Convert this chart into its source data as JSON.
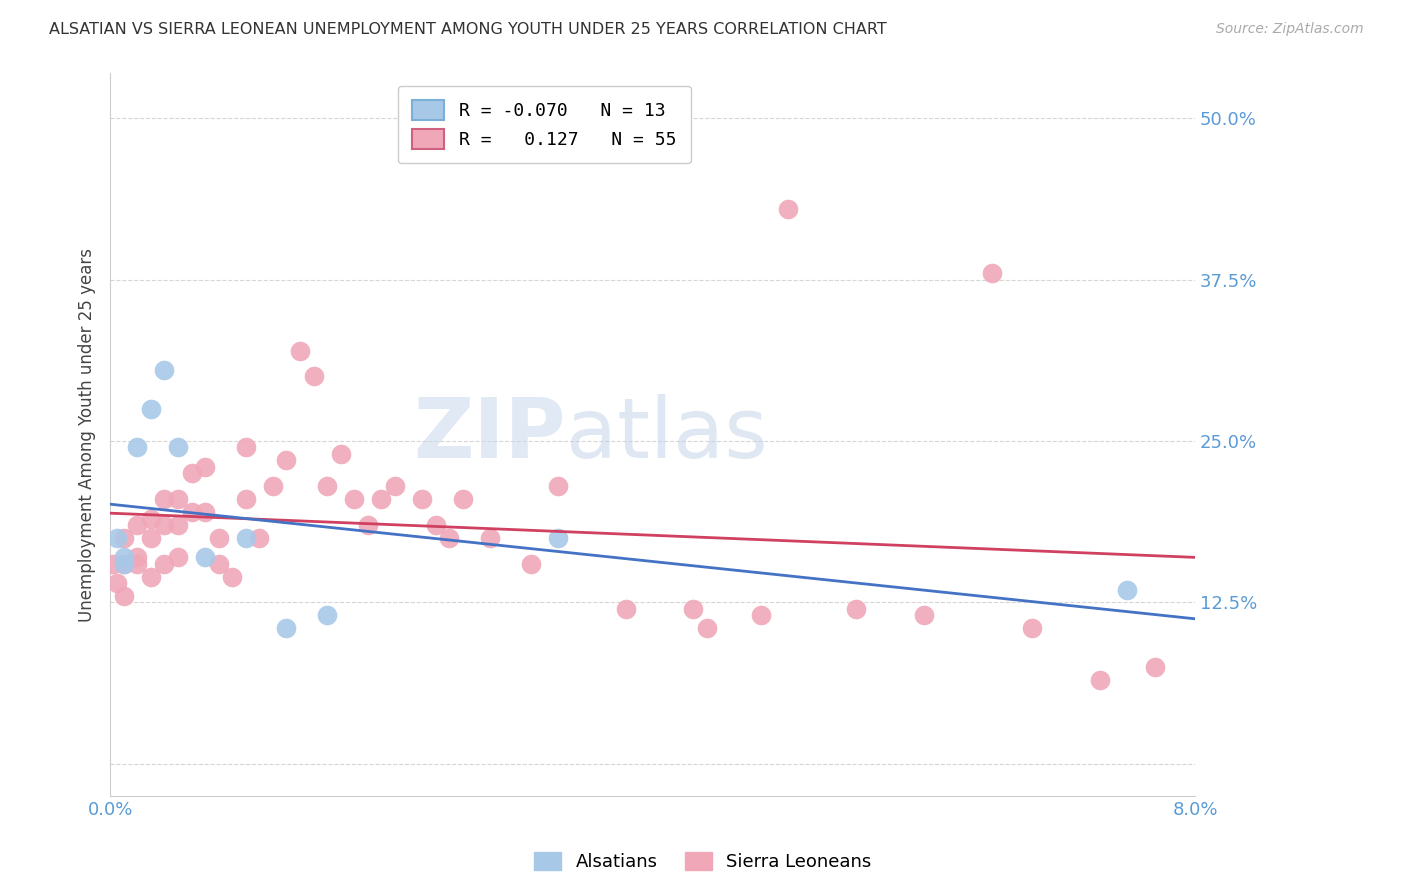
{
  "title": "ALSATIAN VS SIERRA LEONEAN UNEMPLOYMENT AMONG YOUTH UNDER 25 YEARS CORRELATION CHART",
  "source": "Source: ZipAtlas.com",
  "ylabel": "Unemployment Among Youth under 25 years",
  "xlim": [
    0.0,
    0.08
  ],
  "ylim": [
    -0.025,
    0.535
  ],
  "yticks": [
    0.0,
    0.125,
    0.25,
    0.375,
    0.5
  ],
  "ytick_labels": [
    "",
    "12.5%",
    "25.0%",
    "37.5%",
    "50.0%"
  ],
  "xticks": [
    0.0,
    0.01,
    0.02,
    0.03,
    0.04,
    0.05,
    0.06,
    0.07,
    0.08
  ],
  "alsatian_color": "#a8c8e8",
  "sierra_leonean_color": "#f0a8b8",
  "alsatian_line_color": "#4472c4",
  "sierra_leonean_line_color": "#d04060",
  "background_color": "#ffffff",
  "grid_color": "#cccccc",
  "axis_label_color": "#5b9bd5",
  "alsatian_x": [
    0.0005,
    0.001,
    0.001,
    0.002,
    0.003,
    0.004,
    0.005,
    0.007,
    0.01,
    0.013,
    0.016,
    0.033,
    0.075
  ],
  "alsatian_y": [
    0.175,
    0.16,
    0.155,
    0.245,
    0.275,
    0.305,
    0.245,
    0.16,
    0.175,
    0.105,
    0.115,
    0.175,
    0.135
  ],
  "sierra_leonean_x": [
    0.0002,
    0.0005,
    0.001,
    0.001,
    0.001,
    0.002,
    0.002,
    0.002,
    0.003,
    0.003,
    0.003,
    0.004,
    0.004,
    0.004,
    0.005,
    0.005,
    0.005,
    0.006,
    0.006,
    0.007,
    0.007,
    0.008,
    0.008,
    0.009,
    0.01,
    0.01,
    0.011,
    0.012,
    0.013,
    0.014,
    0.015,
    0.016,
    0.017,
    0.018,
    0.019,
    0.02,
    0.021,
    0.023,
    0.024,
    0.025,
    0.026,
    0.028,
    0.031,
    0.033,
    0.038,
    0.043,
    0.044,
    0.048,
    0.05,
    0.055,
    0.06,
    0.065,
    0.068,
    0.073,
    0.077
  ],
  "sierra_leonean_y": [
    0.155,
    0.14,
    0.175,
    0.155,
    0.13,
    0.16,
    0.185,
    0.155,
    0.19,
    0.175,
    0.145,
    0.205,
    0.185,
    0.155,
    0.205,
    0.185,
    0.16,
    0.225,
    0.195,
    0.23,
    0.195,
    0.175,
    0.155,
    0.145,
    0.245,
    0.205,
    0.175,
    0.215,
    0.235,
    0.32,
    0.3,
    0.215,
    0.24,
    0.205,
    0.185,
    0.205,
    0.215,
    0.205,
    0.185,
    0.175,
    0.205,
    0.175,
    0.155,
    0.215,
    0.12,
    0.12,
    0.105,
    0.115,
    0.43,
    0.12,
    0.115,
    0.38,
    0.105,
    0.065,
    0.075
  ]
}
